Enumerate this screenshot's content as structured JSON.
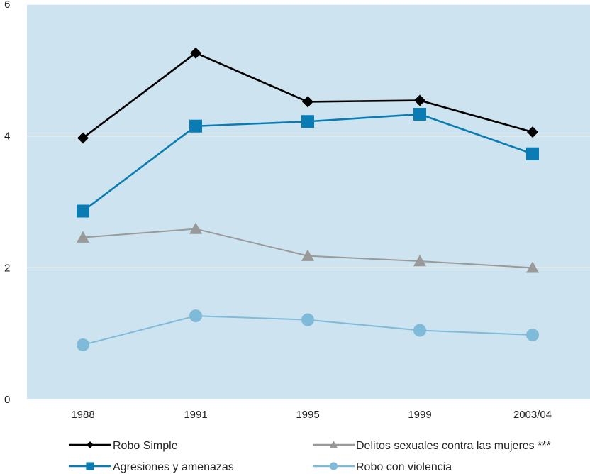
{
  "chart_data": {
    "type": "line",
    "title": "",
    "xlabel": "",
    "ylabel": "",
    "categories": [
      "1988",
      "1991",
      "1995",
      "1999",
      "2003/04"
    ],
    "ylim": [
      0,
      6
    ],
    "yticks": [
      "0",
      "2",
      "4",
      "6"
    ],
    "grid": true,
    "plot_background": "#cde3ef",
    "legend_position": "bottom",
    "series": [
      {
        "name": "Robo Simple",
        "color": "#000000",
        "marker": "diamond",
        "values": [
          3.97,
          5.26,
          4.52,
          4.54,
          4.06
        ]
      },
      {
        "name": "Agresiones y amenazas",
        "color": "#0a7cb3",
        "marker": "square",
        "values": [
          2.86,
          4.15,
          4.22,
          4.33,
          3.73
        ]
      },
      {
        "name": "Delitos sexuales contra las mujeres ***",
        "color": "#999999",
        "marker": "triangle",
        "values": [
          2.46,
          2.59,
          2.18,
          2.1,
          2.0
        ]
      },
      {
        "name": "Robo con violencia",
        "color": "#7fbad9",
        "marker": "circle",
        "values": [
          0.83,
          1.27,
          1.21,
          1.05,
          0.98
        ]
      }
    ]
  }
}
